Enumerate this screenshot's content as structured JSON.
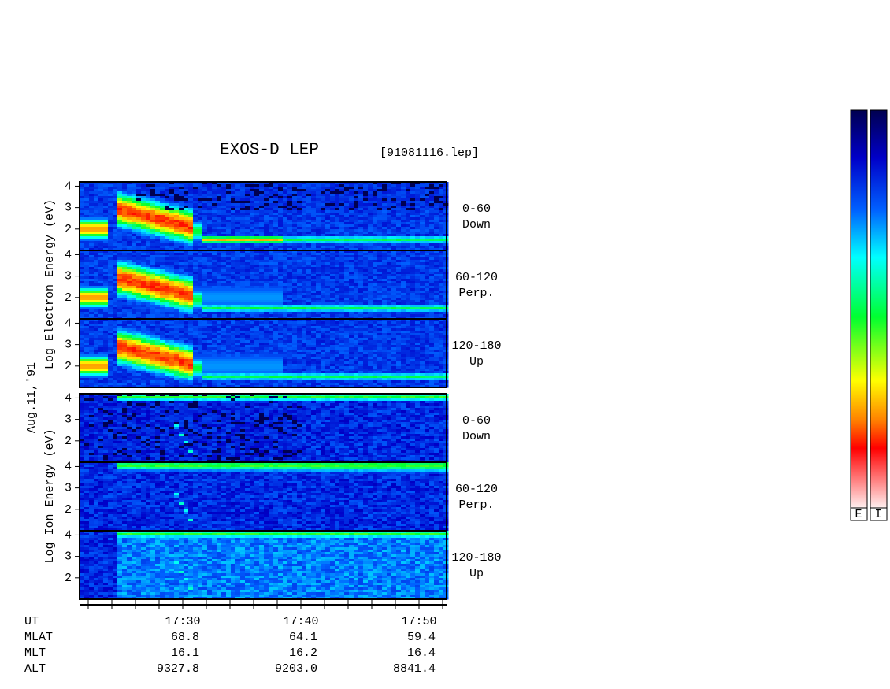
{
  "chart_data": {
    "type": "spectrogram",
    "title": "EXOS-D LEP",
    "subtitle": "[91081116.lep]",
    "date_label": "Aug.11,'91",
    "electron_axis_label": "Log Electron Energy (eV)",
    "ion_axis_label": "Log Ion Energy (eV)",
    "ylim": [
      1,
      4.2
    ],
    "yticks": [
      2,
      3,
      4
    ],
    "x_labels": [
      "17:30",
      "17:40",
      "17:50"
    ],
    "panels": [
      {
        "species": "electron",
        "angle": "0-60",
        "direction": "Down"
      },
      {
        "species": "electron",
        "angle": "60-120",
        "direction": "Perp."
      },
      {
        "species": "electron",
        "angle": "120-180",
        "direction": "Up"
      },
      {
        "species": "ion",
        "angle": "0-60",
        "direction": "Down"
      },
      {
        "species": "ion",
        "angle": "60-120",
        "direction": "Perp."
      },
      {
        "species": "ion",
        "angle": "120-180",
        "direction": "Up"
      }
    ],
    "orbit": [
      {
        "label": "UT",
        "values": []
      },
      {
        "label": "MLAT",
        "values": [
          "68.8",
          "64.1",
          "59.4"
        ]
      },
      {
        "label": "MLT",
        "values": [
          "16.1",
          "16.2",
          "16.4"
        ]
      },
      {
        "label": "ALT",
        "values": [
          "9327.8",
          "9203.0",
          "8841.4"
        ]
      }
    ],
    "colorbars": [
      "E",
      "I"
    ]
  }
}
